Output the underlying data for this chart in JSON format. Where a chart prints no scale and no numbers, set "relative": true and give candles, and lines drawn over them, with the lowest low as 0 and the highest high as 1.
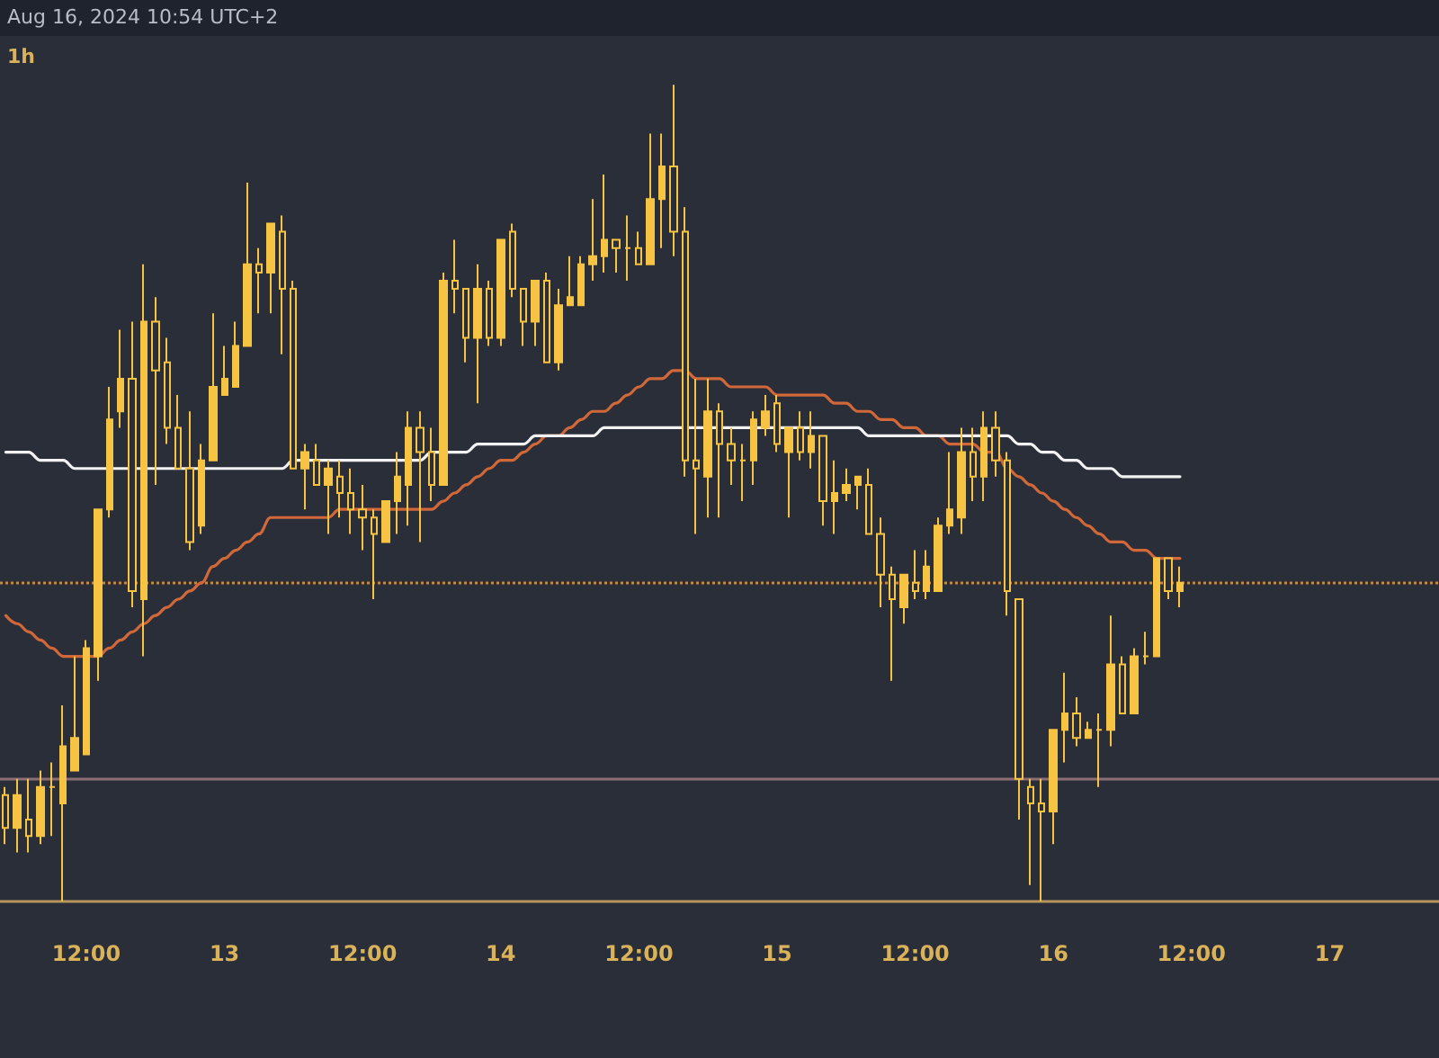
{
  "chart_data": {
    "type": "candlestick",
    "relative": true,
    "color": "#f6c343",
    "categories": [
      null,
      null,
      null,
      null,
      null,
      null,
      null,
      "12:00",
      null,
      null,
      null,
      null,
      null,
      null,
      null,
      null,
      null,
      null,
      null,
      "13",
      null,
      null,
      null,
      null,
      null,
      null,
      null,
      null,
      null,
      null,
      null,
      "12:00",
      null,
      null,
      null,
      null,
      null,
      null,
      null,
      null,
      null,
      null,
      null,
      "14",
      null,
      null,
      null,
      null,
      null,
      null,
      null,
      null,
      null,
      null,
      null,
      "12:00",
      null,
      null,
      null,
      null,
      null,
      null,
      null,
      null,
      null,
      null,
      null,
      "15",
      null,
      null,
      null,
      null,
      null,
      null,
      null,
      null,
      null,
      null,
      null,
      "12:00",
      null,
      null,
      null,
      null,
      null,
      null,
      null,
      null,
      null,
      null,
      null,
      "16",
      null,
      null,
      null,
      null,
      null,
      null,
      null,
      null,
      null,
      null,
      null,
      "12:00",
      null,
      null,
      null,
      null,
      null,
      null,
      null,
      null,
      null,
      null,
      null,
      "17",
      null,
      null,
      null,
      null,
      null,
      null,
      null,
      null,
      null
    ],
    "ohlc": [
      [
        0.13,
        0.14,
        0.07,
        0.09
      ],
      [
        0.09,
        0.15,
        0.06,
        0.13
      ],
      [
        0.1,
        0.15,
        0.06,
        0.08
      ],
      [
        0.08,
        0.16,
        0.07,
        0.14
      ],
      [
        0.14,
        0.17,
        0.08,
        0.14
      ],
      [
        0.12,
        0.24,
        0.0,
        0.19
      ],
      [
        0.16,
        0.3,
        0.16,
        0.2
      ],
      [
        0.18,
        0.32,
        0.18,
        0.31
      ],
      [
        0.3,
        0.48,
        0.27,
        0.48
      ],
      [
        0.48,
        0.63,
        0.47,
        0.59
      ],
      [
        0.6,
        0.7,
        0.58,
        0.64
      ],
      [
        0.64,
        0.71,
        0.36,
        0.38
      ],
      [
        0.37,
        0.78,
        0.3,
        0.71
      ],
      [
        0.71,
        0.74,
        0.51,
        0.65
      ],
      [
        0.66,
        0.69,
        0.56,
        0.58
      ],
      [
        0.58,
        0.62,
        0.53,
        0.53
      ],
      [
        0.53,
        0.6,
        0.43,
        0.44
      ],
      [
        0.46,
        0.56,
        0.45,
        0.54
      ],
      [
        0.54,
        0.72,
        0.54,
        0.63
      ],
      [
        0.62,
        0.68,
        0.62,
        0.64
      ],
      [
        0.63,
        0.71,
        0.63,
        0.68
      ],
      [
        0.68,
        0.88,
        0.68,
        0.78
      ],
      [
        0.78,
        0.8,
        0.72,
        0.77
      ],
      [
        0.77,
        0.83,
        0.72,
        0.83
      ],
      [
        0.82,
        0.84,
        0.67,
        0.75
      ],
      [
        0.75,
        0.76,
        0.53,
        0.53
      ],
      [
        0.53,
        0.56,
        0.48,
        0.55
      ],
      [
        0.54,
        0.56,
        0.51,
        0.51
      ],
      [
        0.51,
        0.54,
        0.45,
        0.53
      ],
      [
        0.52,
        0.54,
        0.47,
        0.5
      ],
      [
        0.5,
        0.53,
        0.45,
        0.48
      ],
      [
        0.48,
        0.51,
        0.43,
        0.47
      ],
      [
        0.47,
        0.48,
        0.37,
        0.45
      ],
      [
        0.44,
        0.49,
        0.44,
        0.49
      ],
      [
        0.49,
        0.55,
        0.45,
        0.52
      ],
      [
        0.51,
        0.6,
        0.46,
        0.58
      ],
      [
        0.58,
        0.6,
        0.44,
        0.55
      ],
      [
        0.55,
        0.58,
        0.49,
        0.51
      ],
      [
        0.51,
        0.77,
        0.51,
        0.76
      ],
      [
        0.76,
        0.81,
        0.72,
        0.75
      ],
      [
        0.75,
        0.75,
        0.66,
        0.69
      ],
      [
        0.69,
        0.78,
        0.61,
        0.75
      ],
      [
        0.75,
        0.76,
        0.68,
        0.69
      ],
      [
        0.69,
        0.81,
        0.68,
        0.81
      ],
      [
        0.82,
        0.83,
        0.74,
        0.75
      ],
      [
        0.75,
        0.75,
        0.68,
        0.71
      ],
      [
        0.71,
        0.76,
        0.68,
        0.76
      ],
      [
        0.76,
        0.77,
        0.66,
        0.66
      ],
      [
        0.66,
        0.75,
        0.65,
        0.73
      ],
      [
        0.73,
        0.79,
        0.73,
        0.74
      ],
      [
        0.73,
        0.79,
        0.73,
        0.78
      ],
      [
        0.78,
        0.86,
        0.76,
        0.79
      ],
      [
        0.79,
        0.89,
        0.77,
        0.81
      ],
      [
        0.81,
        0.81,
        0.77,
        0.8
      ],
      [
        0.8,
        0.84,
        0.76,
        0.8
      ],
      [
        0.8,
        0.82,
        0.78,
        0.78
      ],
      [
        0.78,
        0.94,
        0.78,
        0.86
      ],
      [
        0.86,
        0.94,
        0.8,
        0.9
      ],
      [
        0.9,
        1.0,
        0.79,
        0.82
      ],
      [
        0.82,
        0.85,
        0.52,
        0.54
      ],
      [
        0.54,
        0.64,
        0.45,
        0.53
      ],
      [
        0.52,
        0.64,
        0.47,
        0.6
      ],
      [
        0.6,
        0.61,
        0.47,
        0.56
      ],
      [
        0.56,
        0.58,
        0.51,
        0.54
      ],
      [
        0.54,
        0.56,
        0.49,
        0.54
      ],
      [
        0.54,
        0.6,
        0.51,
        0.59
      ],
      [
        0.58,
        0.62,
        0.57,
        0.6
      ],
      [
        0.61,
        0.62,
        0.55,
        0.56
      ],
      [
        0.55,
        0.58,
        0.47,
        0.58
      ],
      [
        0.58,
        0.6,
        0.54,
        0.55
      ],
      [
        0.55,
        0.6,
        0.53,
        0.57
      ],
      [
        0.57,
        0.57,
        0.46,
        0.49
      ],
      [
        0.49,
        0.54,
        0.45,
        0.5
      ],
      [
        0.5,
        0.53,
        0.49,
        0.51
      ],
      [
        0.51,
        0.52,
        0.48,
        0.52
      ],
      [
        0.51,
        0.53,
        0.45,
        0.45
      ],
      [
        0.45,
        0.47,
        0.36,
        0.4
      ],
      [
        0.4,
        0.41,
        0.27,
        0.37
      ],
      [
        0.36,
        0.4,
        0.34,
        0.4
      ],
      [
        0.39,
        0.43,
        0.37,
        0.38
      ],
      [
        0.38,
        0.43,
        0.37,
        0.41
      ],
      [
        0.38,
        0.47,
        0.38,
        0.46
      ],
      [
        0.46,
        0.55,
        0.45,
        0.48
      ],
      [
        0.47,
        0.58,
        0.45,
        0.55
      ],
      [
        0.55,
        0.58,
        0.49,
        0.52
      ],
      [
        0.52,
        0.6,
        0.49,
        0.58
      ],
      [
        0.58,
        0.6,
        0.52,
        0.54
      ],
      [
        0.54,
        0.55,
        0.35,
        0.38
      ],
      [
        0.37,
        0.37,
        0.1,
        0.15
      ],
      [
        0.14,
        0.15,
        0.02,
        0.12
      ],
      [
        0.12,
        0.15,
        0.0,
        0.11
      ],
      [
        0.11,
        0.21,
        0.07,
        0.21
      ],
      [
        0.21,
        0.28,
        0.17,
        0.23
      ],
      [
        0.23,
        0.25,
        0.19,
        0.2
      ],
      [
        0.2,
        0.22,
        0.2,
        0.21
      ],
      [
        0.21,
        0.23,
        0.14,
        0.21
      ],
      [
        0.21,
        0.35,
        0.19,
        0.29
      ],
      [
        0.29,
        0.3,
        0.23,
        0.23
      ],
      [
        0.23,
        0.31,
        0.23,
        0.3
      ],
      [
        0.3,
        0.33,
        0.29,
        0.3
      ],
      [
        0.3,
        0.42,
        0.3,
        0.42
      ],
      [
        0.42,
        0.42,
        0.37,
        0.38
      ],
      [
        0.38,
        0.41,
        0.36,
        0.39
      ],
      null,
      null,
      null,
      null,
      null,
      null,
      null,
      null,
      null,
      null,
      null,
      null,
      null,
      null,
      null,
      null,
      null,
      null,
      null,
      null,
      null,
      null
    ],
    "series": [
      {
        "type": "line",
        "color": "#d0683a",
        "values": [
          0.35,
          0.34,
          0.33,
          0.32,
          0.31,
          0.3,
          0.3,
          0.3,
          0.3,
          0.31,
          0.32,
          0.33,
          0.34,
          0.35,
          0.36,
          0.37,
          0.38,
          0.39,
          0.41,
          0.42,
          0.43,
          0.44,
          0.45,
          0.47,
          0.47,
          0.47,
          0.47,
          0.47,
          0.47,
          0.48,
          0.48,
          0.48,
          0.48,
          0.48,
          0.48,
          0.48,
          0.48,
          0.48,
          0.49,
          0.5,
          0.51,
          0.52,
          0.53,
          0.54,
          0.54,
          0.55,
          0.56,
          0.57,
          0.57,
          0.58,
          0.59,
          0.6,
          0.6,
          0.61,
          0.62,
          0.63,
          0.64,
          0.64,
          0.65,
          0.65,
          0.64,
          0.64,
          0.64,
          0.63,
          0.63,
          0.63,
          0.63,
          0.62,
          0.62,
          0.62,
          0.62,
          0.62,
          0.61,
          0.61,
          0.6,
          0.6,
          0.59,
          0.59,
          0.58,
          0.58,
          0.57,
          0.57,
          0.56,
          0.56,
          0.56,
          0.55,
          0.55,
          0.53,
          0.52,
          0.51,
          0.5,
          0.49,
          0.48,
          0.47,
          0.46,
          0.45,
          0.44,
          0.44,
          0.43,
          0.43,
          0.42,
          0.42,
          0.42,
          null,
          null,
          null,
          null,
          null,
          null,
          null,
          null,
          null,
          null,
          null,
          null,
          null,
          null,
          null,
          null,
          null,
          null,
          null,
          null,
          null,
          null
        ]
      },
      {
        "type": "line",
        "color": "#f2f2f2",
        "values": [
          0.55,
          0.55,
          0.55,
          0.54,
          0.54,
          0.54,
          0.53,
          0.53,
          0.53,
          0.53,
          0.53,
          0.53,
          0.53,
          0.53,
          0.53,
          0.53,
          0.53,
          0.53,
          0.53,
          0.53,
          0.53,
          0.53,
          0.53,
          0.53,
          0.53,
          0.54,
          0.54,
          0.54,
          0.54,
          0.54,
          0.54,
          0.54,
          0.54,
          0.54,
          0.54,
          0.54,
          0.54,
          0.55,
          0.55,
          0.55,
          0.55,
          0.56,
          0.56,
          0.56,
          0.56,
          0.56,
          0.57,
          0.57,
          0.57,
          0.57,
          0.57,
          0.57,
          0.58,
          0.58,
          0.58,
          0.58,
          0.58,
          0.58,
          0.58,
          0.58,
          0.58,
          0.58,
          0.58,
          0.58,
          0.58,
          0.58,
          0.58,
          0.58,
          0.58,
          0.58,
          0.58,
          0.58,
          0.58,
          0.58,
          0.58,
          0.57,
          0.57,
          0.57,
          0.57,
          0.57,
          0.57,
          0.57,
          0.57,
          0.57,
          0.57,
          0.57,
          0.57,
          0.57,
          0.56,
          0.56,
          0.55,
          0.55,
          0.54,
          0.54,
          0.53,
          0.53,
          0.53,
          0.52,
          0.52,
          0.52,
          0.52,
          0.52,
          0.52,
          null,
          null,
          null,
          null,
          null,
          null,
          null,
          null,
          null,
          null,
          null,
          null,
          null,
          null,
          null,
          null,
          null,
          null,
          null,
          null,
          null,
          null
        ]
      }
    ],
    "ref_lines": [
      {
        "axis": "y",
        "value": 0.15,
        "color": "#8c6f74",
        "line_style": "solid"
      },
      {
        "axis": "y",
        "value": 0.39,
        "color": "#c08a45",
        "line_style": "dotted"
      }
    ],
    "annotations": [
      "Aug 16, 2024 10:54 UTC+2",
      "1h"
    ],
    "marker": "none",
    "grid": false,
    "tick_labels": "x"
  }
}
